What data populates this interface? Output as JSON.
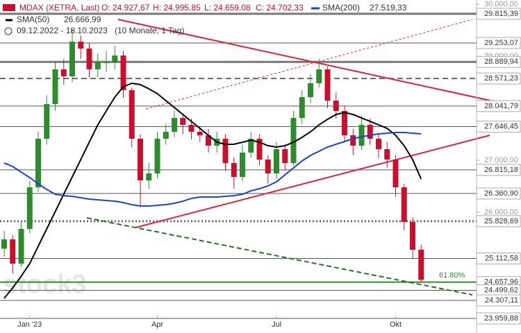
{
  "header": {
    "instrument": "MDAX (XETRA, Last)",
    "ohlc": [
      "O: 24.927,67",
      "H: 24.995,85",
      "L: 24.659,08",
      "C: 24.702,33"
    ],
    "range": "09.12.2022 - 18.10.2023",
    "period": "(10 Monate, 1 Tag)"
  },
  "chart_data": {
    "type": "candlestick",
    "categories": [
      null,
      null,
      null,
      "Jan '23",
      null,
      null,
      null,
      null,
      null,
      null,
      null,
      null,
      null,
      null,
      null,
      null,
      null,
      null,
      "Apr",
      null,
      null,
      null,
      null,
      null,
      null,
      null,
      null,
      null,
      null,
      null,
      null,
      null,
      "Jul",
      null,
      null,
      null,
      null,
      null,
      null,
      null,
      null,
      null,
      null,
      null,
      null,
      null,
      "Okt",
      null,
      null,
      null
    ],
    "candles": {
      "open": [
        25300,
        25480,
        25013,
        25680,
        26480,
        27413,
        28080,
        28747,
        28613,
        29280,
        29147,
        28747,
        28880,
        28880,
        29013,
        28347,
        27413,
        26613,
        26747,
        27413,
        27547,
        27813,
        27680,
        27547,
        27480,
        27280,
        27413,
        26947,
        26680,
        27147,
        27413,
        27013,
        26747,
        27213,
        26947,
        27813,
        28213,
        28480,
        28747,
        28147,
        27947,
        27480,
        27280,
        27680,
        27413,
        27213,
        27013,
        26480,
        25813,
        25280
      ],
      "high": [
        25640,
        25560,
        25800,
        26600,
        27550,
        28250,
        28900,
        28950,
        29520,
        29400,
        29250,
        29050,
        29100,
        29200,
        29100,
        28400,
        27500,
        26950,
        27550,
        27700,
        27950,
        27900,
        27800,
        27650,
        27600,
        27550,
        27500,
        27050,
        27300,
        27550,
        27500,
        27100,
        27350,
        27300,
        27950,
        28350,
        28650,
        28950,
        28800,
        28300,
        28050,
        27600,
        27850,
        27800,
        27500,
        27350,
        27100,
        26550,
        25900,
        25380
      ],
      "low": [
        25150,
        24820,
        24950,
        25600,
        26400,
        27300,
        27950,
        28450,
        28500,
        28950,
        28600,
        28600,
        28700,
        28750,
        28200,
        27250,
        26100,
        26450,
        26650,
        27300,
        27450,
        27500,
        27400,
        27350,
        27150,
        27150,
        26800,
        26450,
        26600,
        27050,
        26900,
        26550,
        26650,
        26800,
        26900,
        27700,
        28100,
        28400,
        28000,
        27800,
        27350,
        27100,
        27200,
        27300,
        27050,
        26850,
        26300,
        25650,
        25100,
        24659
      ],
      "close": [
        25480,
        25013,
        25680,
        26480,
        27413,
        28080,
        28747,
        28613,
        29280,
        29147,
        28747,
        28880,
        28880,
        29013,
        28347,
        27413,
        26613,
        26747,
        27413,
        27547,
        27813,
        27680,
        27547,
        27480,
        27280,
        27413,
        26947,
        26680,
        27147,
        27413,
        27013,
        26747,
        27213,
        26947,
        27813,
        28213,
        28480,
        28747,
        28147,
        27947,
        27480,
        27280,
        27680,
        27413,
        27213,
        27013,
        26480,
        25813,
        25280,
        24702
      ],
      "up_color": "#2e8b2e",
      "down_color": "#c8102e"
    },
    "series": [
      {
        "name": "SMA(50)",
        "color": "#000000",
        "values": [
          24347,
          24547,
          24773,
          25013,
          25347,
          25680,
          26013,
          26347,
          26680,
          27013,
          27347,
          27680,
          27947,
          28213,
          28413,
          28480,
          28453,
          28373,
          28280,
          28147,
          28013,
          27880,
          27747,
          27613,
          27480,
          27347,
          27307,
          27307,
          27347,
          27387,
          27347,
          27280,
          27253,
          27280,
          27347,
          27440,
          27547,
          27680,
          27787,
          27880,
          27920,
          27880,
          27813,
          27747,
          27680,
          27613,
          27480,
          27280,
          27013,
          26640
        ]
      },
      {
        "name": "SMA(200)",
        "color": "#1c3fd6",
        "values": [
          26947,
          26880,
          26773,
          26667,
          26547,
          26440,
          26347,
          26320,
          26307,
          26280,
          26253,
          26240,
          26227,
          26213,
          26187,
          26147,
          26120,
          26120,
          26133,
          26147,
          26173,
          26213,
          26267,
          26293,
          26293,
          26293,
          26307,
          26320,
          26347,
          26413,
          26453,
          26507,
          26587,
          26720,
          26853,
          26987,
          27093,
          27173,
          27253,
          27307,
          27360,
          27413,
          27453,
          27480,
          27507,
          27520,
          27533,
          27533,
          27520,
          27507
        ]
      }
    ],
    "legend_values": [
      "26.666,99",
      "27.519,33"
    ],
    "ylim": [
      23680,
      30080
    ],
    "yticks": [
      {
        "value": 30000,
        "label": "30.000,00"
      },
      {
        "value": 29000,
        "label": "29.000,00"
      },
      {
        "value": 27000,
        "label": "27.000,00"
      },
      {
        "value": 26000,
        "label": "26.000,00"
      }
    ],
    "levels": [
      {
        "value": 29815.39,
        "label": "29.815,39",
        "color": "#777777",
        "width": 3,
        "dash": "none"
      },
      {
        "value": 29253.07,
        "label": "29.253,07",
        "color": "#555555",
        "width": 1,
        "dash": "none"
      },
      {
        "value": 28889.94,
        "label": "28.889,94",
        "color": "#777777",
        "width": 3,
        "dash": "none"
      },
      {
        "value": 28571.23,
        "label": "28.571,23",
        "color": "#666666",
        "width": 2,
        "dash": "8,5"
      },
      {
        "value": 28041.79,
        "label": "28.041,79",
        "color": "#555555",
        "width": 1,
        "dash": "none"
      },
      {
        "value": 27646.45,
        "label": "27.646,45",
        "color": "#555555",
        "width": 1,
        "dash": "none"
      },
      {
        "value": 26815.18,
        "label": "26.815,18",
        "color": "#555555",
        "width": 1,
        "dash": "none"
      },
      {
        "value": 26360.9,
        "label": "26.360,90",
        "color": "#555555",
        "width": 1,
        "dash": "none"
      },
      {
        "value": 25828.69,
        "label": "25.828,69",
        "color": "#666666",
        "width": 3,
        "dash": "2,3"
      },
      {
        "value": 25112.58,
        "label": "25.112,58",
        "color": "#555555",
        "width": 1,
        "dash": "none"
      },
      {
        "value": 24657.96,
        "label": "24.657,96",
        "color": "#2e8b2e",
        "width": 2,
        "dash": "none"
      },
      {
        "value": 24499.62,
        "label": "24.499,62",
        "color": "#555555",
        "width": 1,
        "dash": "none"
      },
      {
        "value": 24307.11,
        "label": "24.307,11",
        "color": "#555555",
        "width": 1,
        "dash": "none"
      },
      {
        "value": 23959.88,
        "label": "23.959,88",
        "color": "#555555",
        "width": 1,
        "dash": "none"
      }
    ],
    "annotation": "61.80%",
    "watermark": "stock3"
  }
}
